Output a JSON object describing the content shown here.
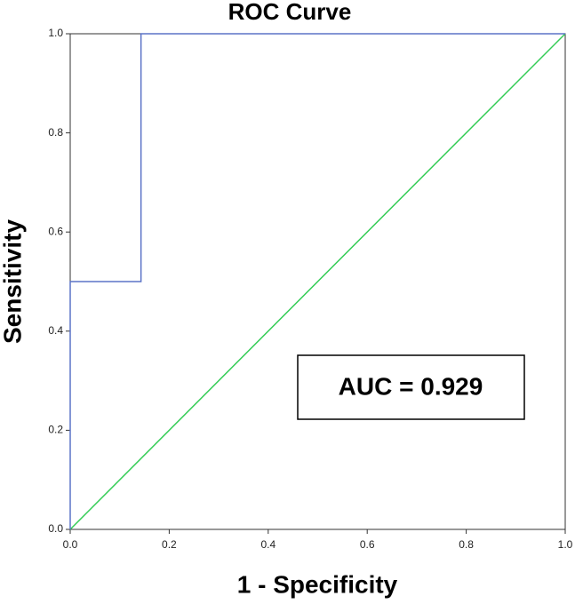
{
  "chart_data": {
    "type": "line",
    "title": "ROC Curve",
    "x_label": "1 - Specificity",
    "y_label": "Sensitivity",
    "series": [
      {
        "color": "#5b73c7",
        "x": [
          0,
          0,
          0.143,
          0.143,
          1
        ],
        "values": [
          0,
          0.5,
          0.5,
          1,
          1
        ]
      },
      {
        "color": "#33cc55",
        "x": [
          0,
          1
        ],
        "values": [
          0,
          1
        ]
      }
    ],
    "xlim": [
      0,
      1
    ],
    "ylim": [
      0,
      1
    ],
    "xticks": [
      {
        "value": 0,
        "label": "0.0"
      },
      0.2,
      0.4,
      0.6,
      0.8,
      {
        "value": 1,
        "label": "1.0"
      }
    ],
    "yticks": [
      {
        "value": 0,
        "label": "0.0"
      },
      0.2,
      0.4,
      0.6,
      0.8,
      {
        "value": 1,
        "label": "1.0"
      }
    ],
    "annotation": "AUC = 0.929"
  }
}
